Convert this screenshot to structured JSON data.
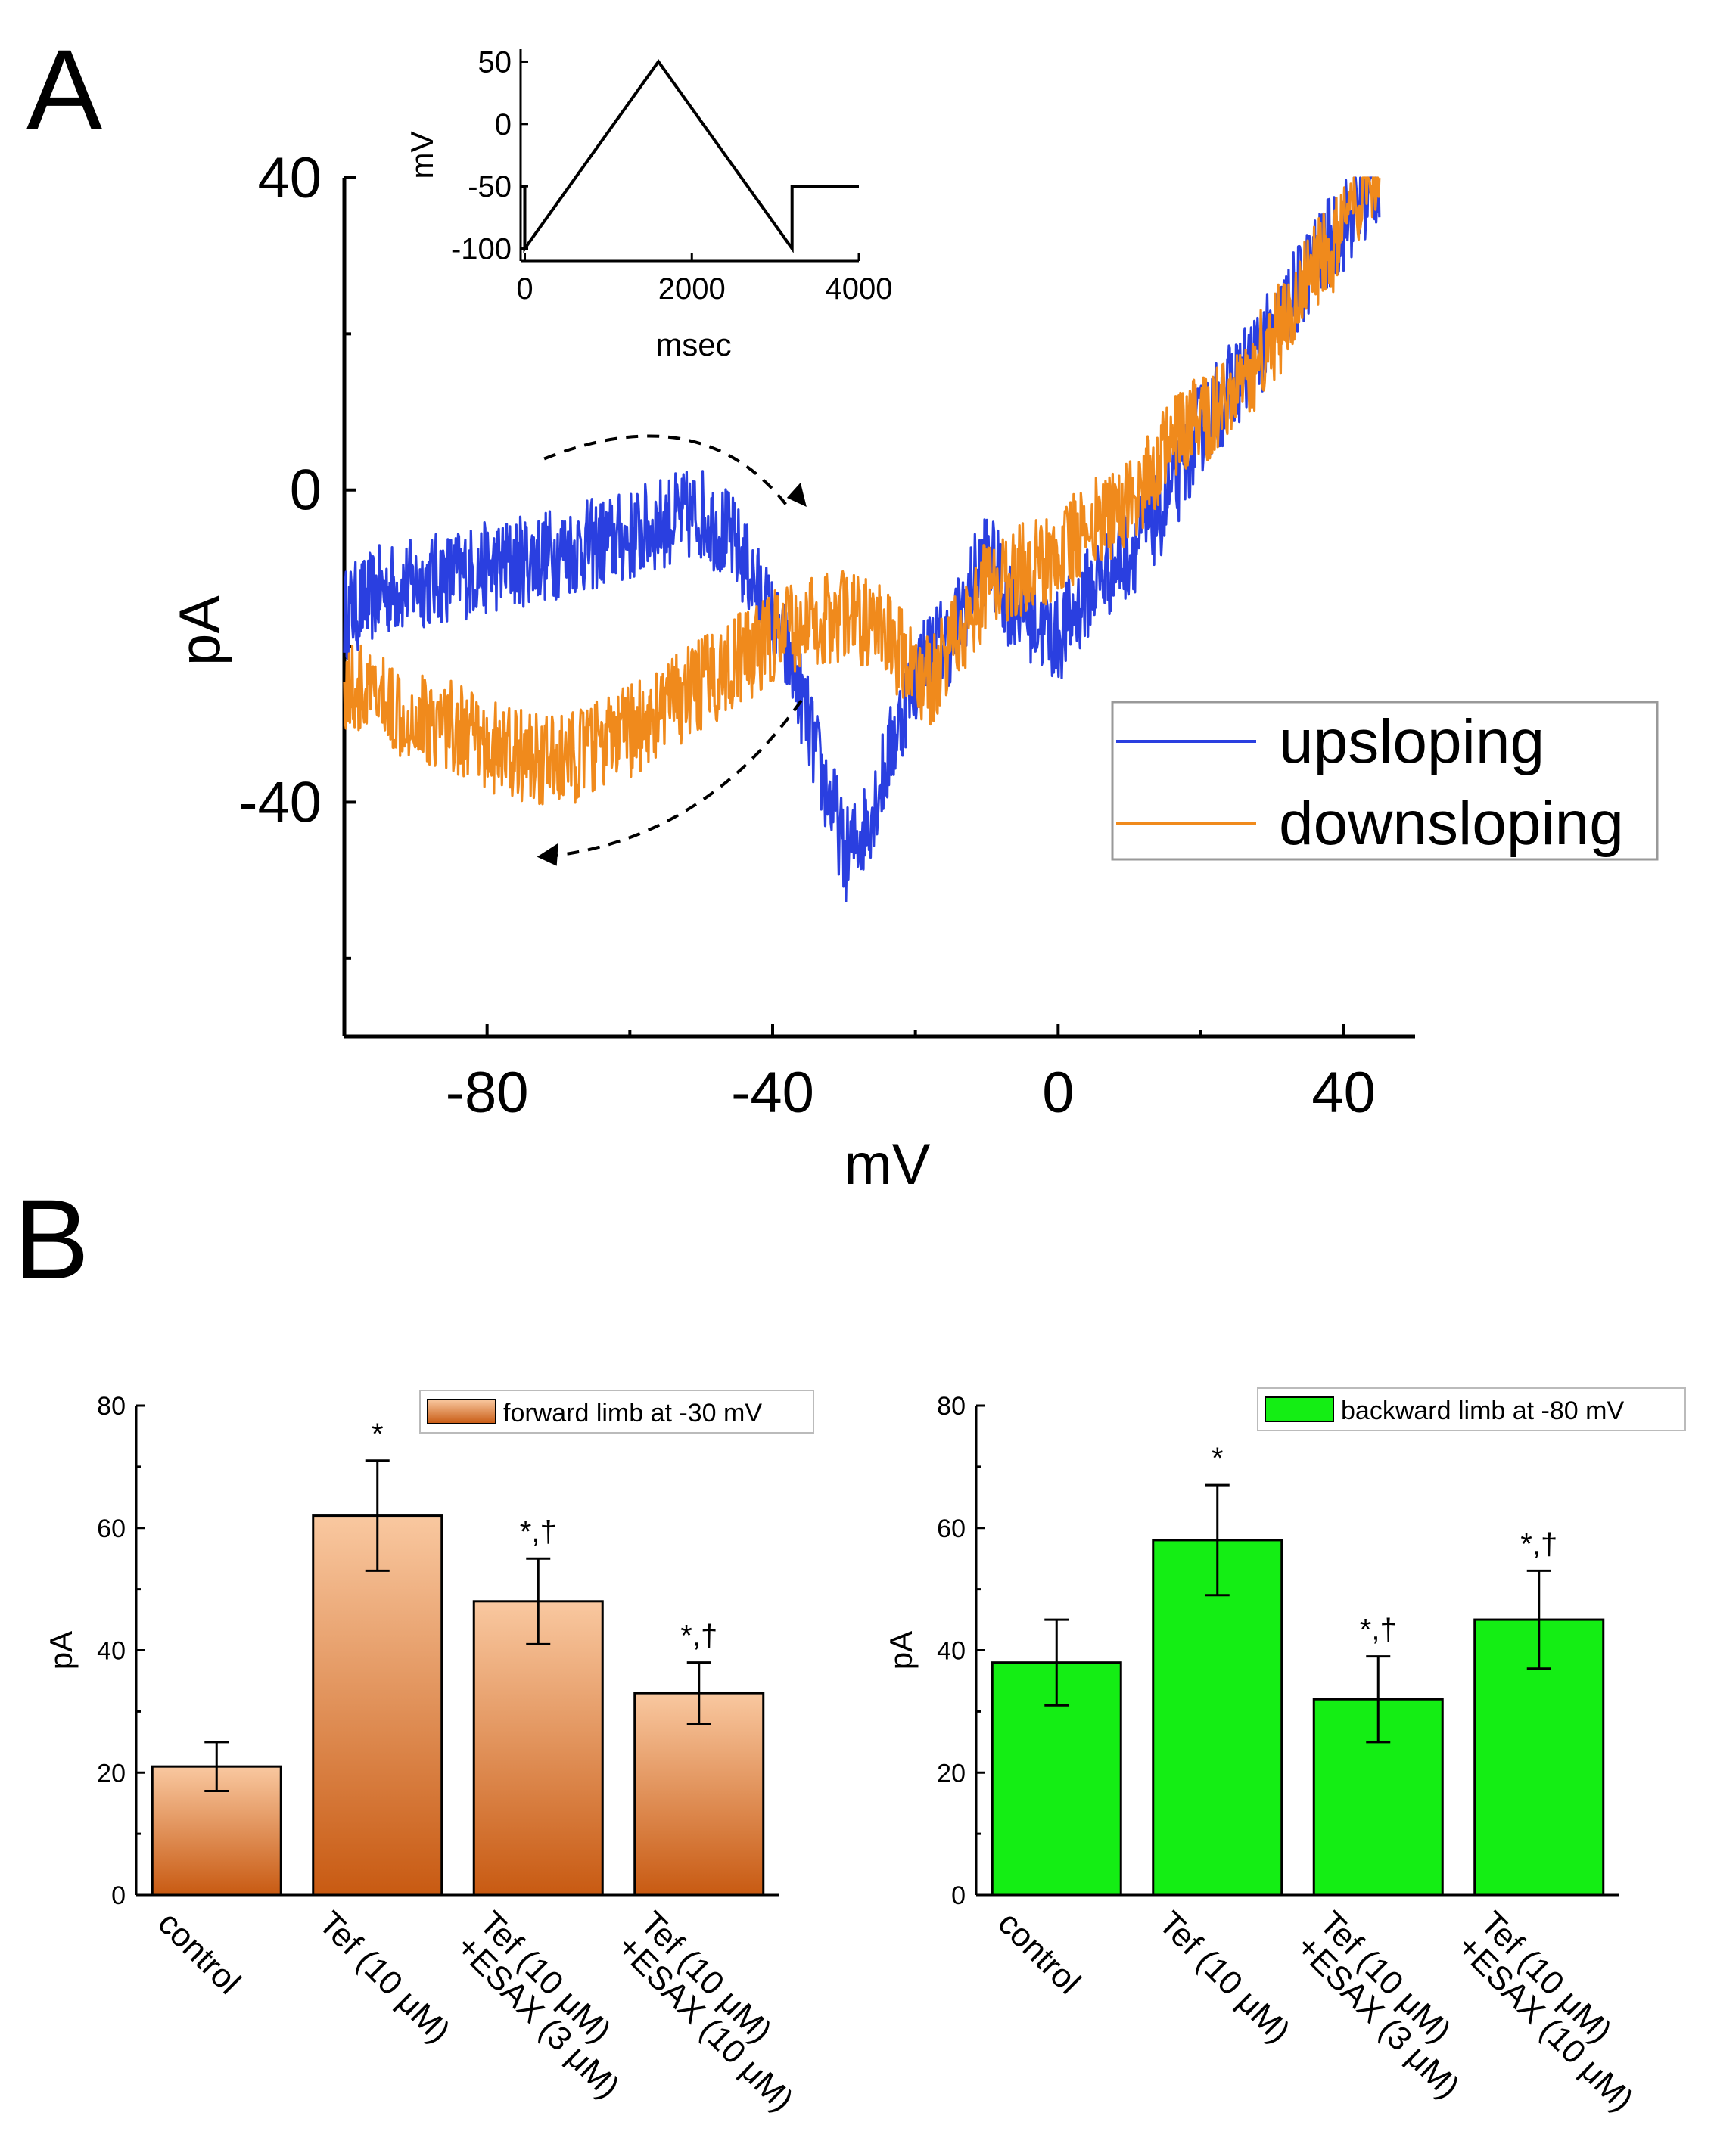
{
  "panel_a_label": "A",
  "panel_b_label": "B",
  "chart_data": [
    {
      "id": "iv-curve",
      "type": "line",
      "xlabel": "mV",
      "ylabel": "pA",
      "xlim": [
        -100,
        50
      ],
      "ylim": [
        -70,
        40
      ],
      "xticks": [
        -80,
        -40,
        0,
        40
      ],
      "yticks": [
        40,
        0,
        -40
      ],
      "legend": {
        "placement": "right",
        "items": [
          "upsloping",
          "downsloping"
        ]
      },
      "series": [
        {
          "name": "upsloping",
          "color": "#2a3fe0",
          "x": [
            -100,
            -95,
            -90,
            -85,
            -80,
            -75,
            -70,
            -65,
            -60,
            -55,
            -50,
            -46,
            -43,
            -40,
            -37,
            -35,
            -33,
            -31,
            -30,
            -29,
            -27,
            -25,
            -23,
            -21,
            -19,
            -17,
            -15,
            -12,
            -10,
            -7,
            -5,
            -2,
            0,
            5,
            10,
            15,
            20,
            25,
            30,
            35,
            40,
            45
          ],
          "y": [
            -16,
            -13,
            -12,
            -11,
            -10,
            -9,
            -8,
            -7,
            -6,
            -4,
            -3,
            -6,
            -11,
            -17,
            -23,
            -30,
            -37,
            -42,
            -47,
            -46,
            -43,
            -38,
            -32,
            -26,
            -22,
            -20,
            -19,
            -12,
            -8,
            -14,
            -15,
            -18,
            -19,
            -12,
            -8,
            -2,
            8,
            14,
            20,
            28,
            34,
            40
          ]
        },
        {
          "name": "downsloping",
          "color": "#f08a1c",
          "x": [
            -100,
            -95,
            -90,
            -85,
            -80,
            -75,
            -70,
            -65,
            -60,
            -55,
            -50,
            -45,
            -40,
            -35,
            -30,
            -25,
            -20,
            -18,
            -15,
            -12,
            -10,
            -5,
            0,
            5,
            10,
            15,
            20,
            25,
            30,
            35,
            40,
            45
          ],
          "y": [
            -25,
            -27,
            -29,
            -30,
            -33,
            -34,
            -35,
            -33,
            -31,
            -28,
            -25,
            -22,
            -19,
            -17,
            -16,
            -18,
            -23,
            -25,
            -19,
            -16,
            -12,
            -10,
            -8,
            -4,
            -2,
            5,
            9,
            13,
            19,
            27,
            33,
            40
          ]
        }
      ]
    },
    {
      "id": "inset-protocol",
      "type": "line",
      "xlabel": "msec",
      "ylabel": "mV",
      "xlim": [
        -50,
        4000
      ],
      "ylim": [
        -110,
        60
      ],
      "xticks": [
        0,
        2000,
        4000
      ],
      "yticks": [
        50,
        0,
        -50,
        -100
      ],
      "series": [
        {
          "name": "voltage ramp",
          "x": [
            -50,
            0,
            0,
            1600,
            3200,
            3200,
            4000
          ],
          "y": [
            -50,
            -50,
            -100,
            50,
            -100,
            -50,
            -50
          ]
        }
      ]
    },
    {
      "id": "bar-forward",
      "type": "bar",
      "ylabel": "pA",
      "ylim": [
        0,
        80
      ],
      "yticks": [
        0,
        20,
        40,
        60,
        80
      ],
      "legend_label": "forward limb at -30 mV",
      "categories": [
        [
          "control"
        ],
        [
          "Tef (10 μM)"
        ],
        [
          "Tef (10 μM)",
          "+ESAX (3 μM)"
        ],
        [
          "Tef (10 μM)",
          "+ESAX (10 μM)"
        ]
      ],
      "values": [
        21,
        62,
        48,
        33
      ],
      "errors": [
        4,
        9,
        7,
        5
      ],
      "annotations": [
        "",
        "*",
        "*,†",
        "*,†"
      ],
      "colors": {
        "top": "#f9c8a0",
        "bottom": "#c85a12"
      }
    },
    {
      "id": "bar-backward",
      "type": "bar",
      "ylabel": "pA",
      "ylim": [
        0,
        80
      ],
      "yticks": [
        0,
        20,
        40,
        60,
        80
      ],
      "legend_label": "backward limb at -80 mV",
      "categories": [
        [
          "control"
        ],
        [
          "Tef (10 μM)"
        ],
        [
          "Tef (10 μM)",
          "+ESAX (3 μM)"
        ],
        [
          "Tef (10 μM)",
          "+ESAX (10 μM)"
        ]
      ],
      "values": [
        38,
        58,
        32,
        45
      ],
      "errors": [
        7,
        9,
        7,
        8
      ],
      "annotations": [
        "",
        "*",
        "*,†",
        "*,†"
      ],
      "colors": {
        "fill": "#14ee14"
      }
    }
  ]
}
